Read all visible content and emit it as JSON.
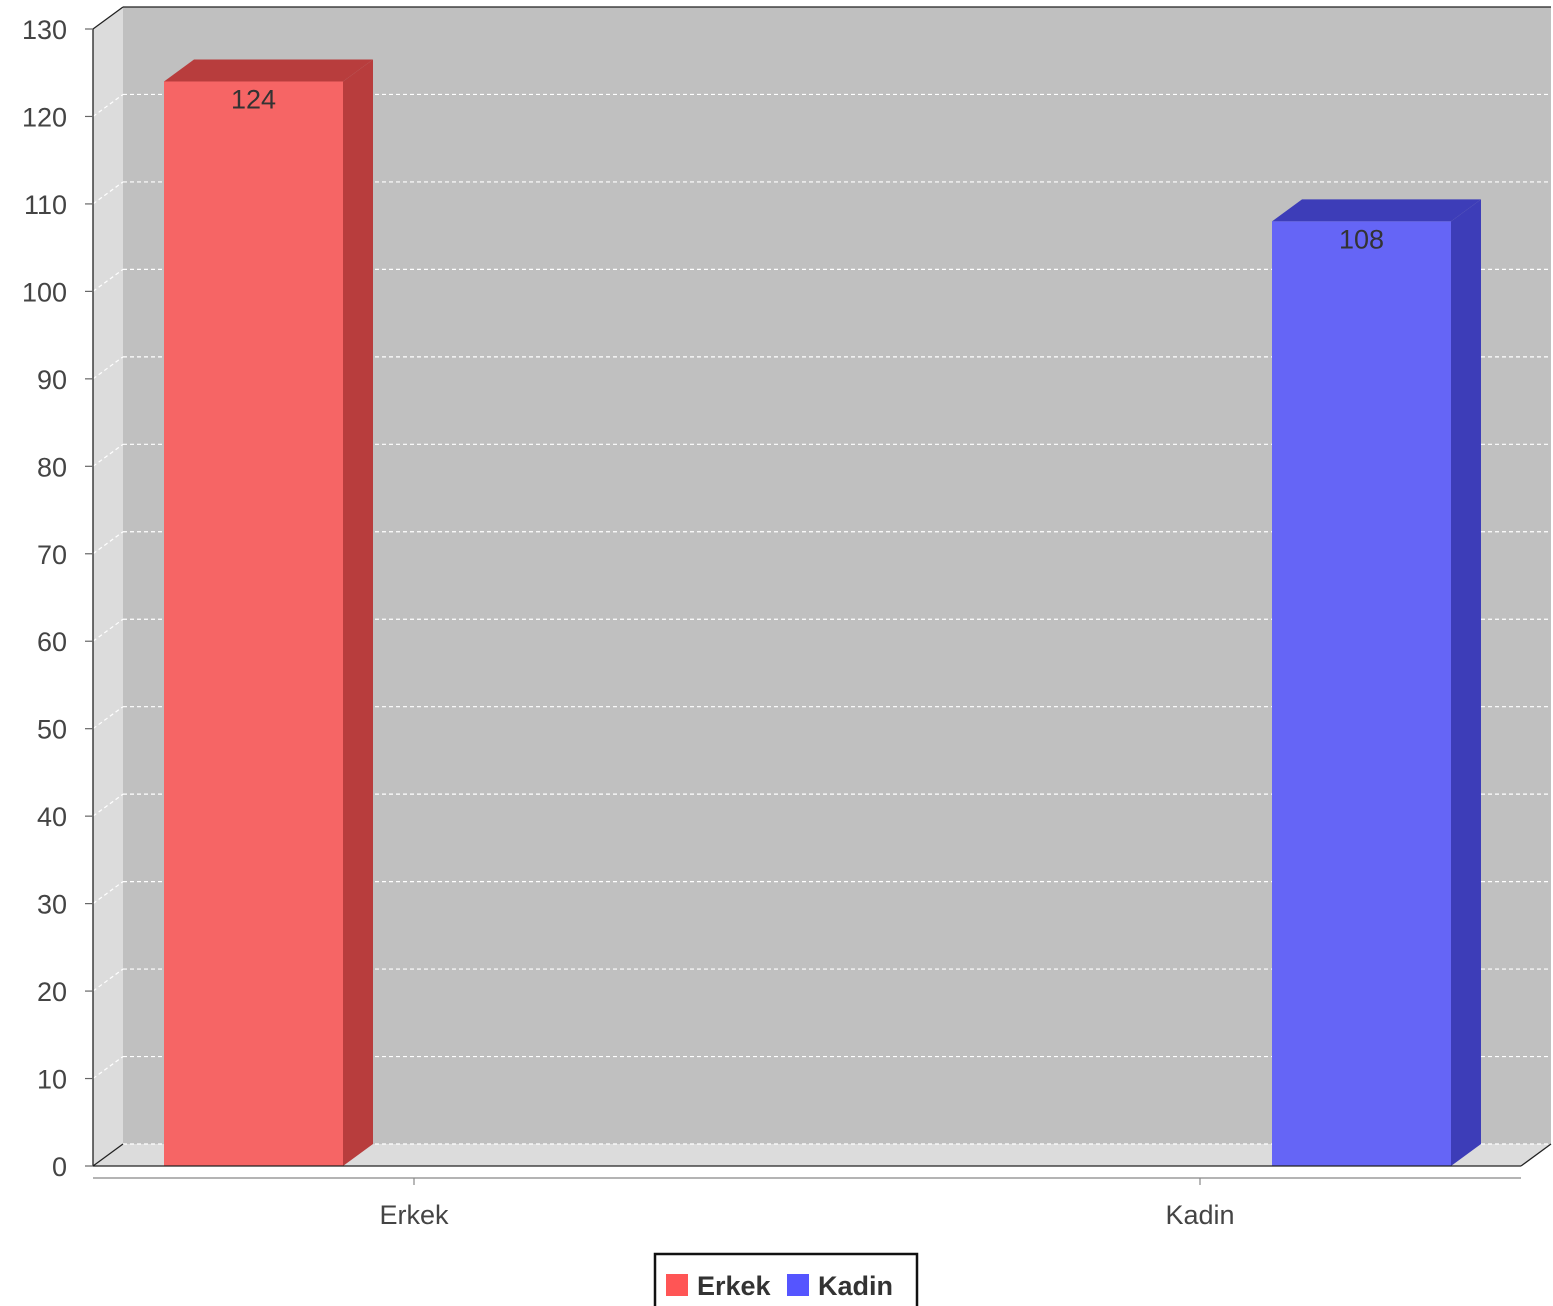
{
  "chart_data": {
    "type": "bar",
    "categories": [
      "Erkek",
      "Kadin"
    ],
    "values": [
      124,
      108
    ],
    "colors": [
      "#ff5555",
      "#5555ff"
    ],
    "data_labels": [
      "124",
      "108"
    ],
    "y_ticks": [
      "0",
      "10",
      "20",
      "30",
      "40",
      "50",
      "60",
      "70",
      "80",
      "90",
      "100",
      "110",
      "120",
      "130"
    ],
    "ylim": [
      0,
      130
    ],
    "grid": true,
    "legend_position": "bottom",
    "legend": [
      {
        "label": "Erkek",
        "color": "#ff5555"
      },
      {
        "label": "Kadin",
        "color": "#5555ff"
      }
    ],
    "style": "3d-bar",
    "plot_background": "#c0c0c0"
  }
}
